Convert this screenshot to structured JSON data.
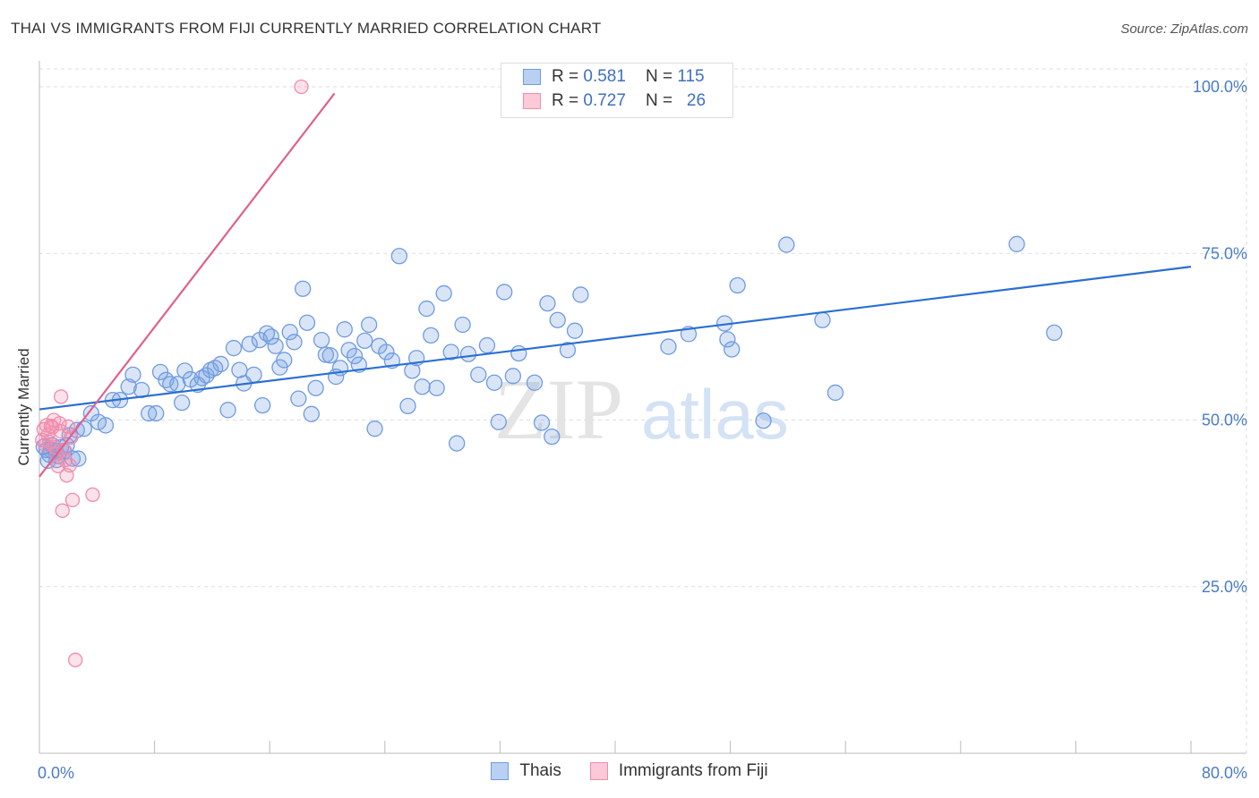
{
  "title": "THAI VS IMMIGRANTS FROM FIJI CURRENTLY MARRIED CORRELATION CHART",
  "source": "Source: ZipAtlas.com",
  "watermark": {
    "zip": "ZIP",
    "atlas": "atlas"
  },
  "colors": {
    "thai": "#6f9be0",
    "thai_line": "#2a6fd0",
    "fiji": "#f08cad",
    "fiji_line": "#e0608c",
    "tick_text": "#4a7cc7",
    "grid": "#dddddd"
  },
  "legend_top": {
    "rows": [
      {
        "r_label": "R =",
        "r_value": "0.581",
        "n_label": "N =",
        "n_value": "115"
      },
      {
        "r_label": "R =",
        "r_value": "0.727",
        "n_label": "N =",
        "n_value": "26"
      }
    ]
  },
  "legend_bottom": [
    {
      "label": "Thais"
    },
    {
      "label": "Immigrants from Fiji"
    }
  ],
  "chart_data": {
    "type": "scatter",
    "title": "THAI VS IMMIGRANTS FROM FIJI CURRENTLY MARRIED CORRELATION CHART",
    "xlabel": "",
    "ylabel": "Currently Married",
    "xlim": [
      0,
      80
    ],
    "ylim": [
      0,
      105
    ],
    "x_tick_labels": [
      {
        "value": 0,
        "label": "0.0%"
      },
      {
        "value": 80,
        "label": "80.0%"
      }
    ],
    "y_tick_labels": [
      {
        "value": 100,
        "label": "100.0%"
      },
      {
        "value": 75,
        "label": "75.0%"
      },
      {
        "value": 50,
        "label": "50.0%"
      },
      {
        "value": 25,
        "label": "25.0%"
      }
    ],
    "grid": true,
    "series": [
      {
        "name": "Thais",
        "r": 0.581,
        "n": 115,
        "trendline": {
          "x": [
            0,
            80
          ],
          "y": [
            51.6,
            73.0
          ]
        },
        "points": [
          [
            0.3,
            46
          ],
          [
            0.5,
            45.5
          ],
          [
            0.7,
            44.8
          ],
          [
            0.9,
            46.2
          ],
          [
            1.1,
            45.4
          ],
          [
            1.3,
            44.6
          ],
          [
            1.5,
            45.9
          ],
          [
            1.7,
            45.3
          ],
          [
            0.6,
            43.9
          ],
          [
            1.9,
            46.2
          ],
          [
            2.1,
            47.7
          ],
          [
            2.3,
            44.2
          ],
          [
            2.6,
            48.5
          ],
          [
            3.1,
            48.7
          ],
          [
            3.6,
            51.0
          ],
          [
            4.1,
            49.7
          ],
          [
            4.6,
            49.2
          ],
          [
            5.1,
            53.0
          ],
          [
            5.6,
            53.0
          ],
          [
            6.2,
            55.0
          ],
          [
            6.5,
            56.8
          ],
          [
            7.1,
            54.5
          ],
          [
            7.6,
            51.0
          ],
          [
            8.1,
            51.0
          ],
          [
            8.4,
            57.2
          ],
          [
            8.8,
            56.0
          ],
          [
            9.1,
            55.4
          ],
          [
            9.6,
            55.4
          ],
          [
            9.9,
            52.6
          ],
          [
            10.1,
            57.4
          ],
          [
            10.5,
            56.1
          ],
          [
            11.0,
            55.3
          ],
          [
            11.3,
            56.3
          ],
          [
            11.6,
            56.7
          ],
          [
            11.9,
            57.5
          ],
          [
            12.2,
            57.8
          ],
          [
            12.6,
            58.4
          ],
          [
            13.1,
            51.5
          ],
          [
            13.5,
            60.8
          ],
          [
            13.9,
            57.5
          ],
          [
            14.2,
            55.5
          ],
          [
            14.6,
            61.4
          ],
          [
            14.9,
            56.8
          ],
          [
            15.3,
            62.0
          ],
          [
            15.5,
            52.2
          ],
          [
            15.8,
            63.0
          ],
          [
            16.1,
            62.5
          ],
          [
            16.4,
            61.1
          ],
          [
            16.7,
            57.9
          ],
          [
            17.0,
            59.0
          ],
          [
            17.4,
            63.2
          ],
          [
            17.7,
            61.7
          ],
          [
            18.0,
            53.2
          ],
          [
            18.3,
            69.7
          ],
          [
            18.6,
            64.6
          ],
          [
            18.9,
            50.9
          ],
          [
            19.2,
            54.8
          ],
          [
            19.6,
            62.0
          ],
          [
            19.9,
            59.8
          ],
          [
            20.2,
            59.7
          ],
          [
            20.6,
            56.5
          ],
          [
            20.9,
            57.8
          ],
          [
            21.2,
            63.6
          ],
          [
            21.5,
            60.5
          ],
          [
            21.9,
            59.6
          ],
          [
            22.2,
            58.3
          ],
          [
            22.6,
            61.9
          ],
          [
            22.9,
            64.3
          ],
          [
            23.3,
            48.7
          ],
          [
            23.6,
            61.1
          ],
          [
            24.1,
            60.2
          ],
          [
            24.5,
            58.9
          ],
          [
            25.0,
            74.6
          ],
          [
            25.6,
            52.1
          ],
          [
            25.9,
            57.4
          ],
          [
            26.2,
            59.3
          ],
          [
            26.6,
            55.0
          ],
          [
            26.9,
            66.7
          ],
          [
            27.2,
            62.7
          ],
          [
            27.6,
            54.8
          ],
          [
            28.1,
            69.0
          ],
          [
            28.6,
            60.2
          ],
          [
            29.0,
            46.5
          ],
          [
            29.4,
            64.3
          ],
          [
            29.8,
            59.9
          ],
          [
            30.5,
            56.8
          ],
          [
            31.1,
            61.2
          ],
          [
            31.6,
            55.6
          ],
          [
            31.9,
            49.7
          ],
          [
            32.3,
            69.2
          ],
          [
            32.9,
            56.6
          ],
          [
            33.3,
            60.0
          ],
          [
            34.4,
            55.6
          ],
          [
            34.9,
            49.6
          ],
          [
            35.3,
            67.5
          ],
          [
            35.6,
            47.5
          ],
          [
            36.0,
            65.0
          ],
          [
            36.7,
            60.5
          ],
          [
            37.2,
            63.4
          ],
          [
            37.6,
            68.8
          ],
          [
            43.7,
            61.0
          ],
          [
            45.1,
            62.9
          ],
          [
            47.6,
            64.5
          ],
          [
            47.8,
            62.1
          ],
          [
            48.1,
            60.6
          ],
          [
            48.5,
            70.2
          ],
          [
            50.3,
            49.9
          ],
          [
            51.9,
            76.3
          ],
          [
            54.4,
            65.0
          ],
          [
            55.3,
            54.1
          ],
          [
            67.9,
            76.4
          ],
          [
            70.5,
            63.1
          ],
          [
            0.8,
            45.5
          ],
          [
            1.2,
            44.0
          ],
          [
            2.7,
            44.2
          ]
        ]
      },
      {
        "name": "Immigrants from Fiji",
        "r": 0.727,
        "n": 26,
        "trendline": {
          "x": [
            0,
            20.5
          ],
          "y": [
            41.5,
            99.0
          ]
        },
        "points": [
          [
            0.2,
            47.0
          ],
          [
            0.3,
            48.6
          ],
          [
            0.5,
            49.2
          ],
          [
            0.6,
            47.8
          ],
          [
            0.7,
            46.7
          ],
          [
            0.8,
            49.1
          ],
          [
            0.9,
            48.9
          ],
          [
            1.0,
            50.0
          ],
          [
            1.1,
            45.9
          ],
          [
            1.2,
            44.9
          ],
          [
            1.3,
            43.1
          ],
          [
            1.4,
            49.5
          ],
          [
            1.5,
            48.3
          ],
          [
            1.5,
            53.5
          ],
          [
            1.6,
            36.4
          ],
          [
            1.7,
            45.5
          ],
          [
            1.8,
            44.0
          ],
          [
            1.9,
            41.7
          ],
          [
            2.0,
            49.0
          ],
          [
            2.1,
            43.2
          ],
          [
            2.2,
            47.4
          ],
          [
            2.3,
            38.0
          ],
          [
            2.5,
            14.0
          ],
          [
            3.7,
            38.8
          ],
          [
            18.2,
            100.0
          ],
          [
            0.4,
            46.3
          ]
        ]
      }
    ]
  }
}
